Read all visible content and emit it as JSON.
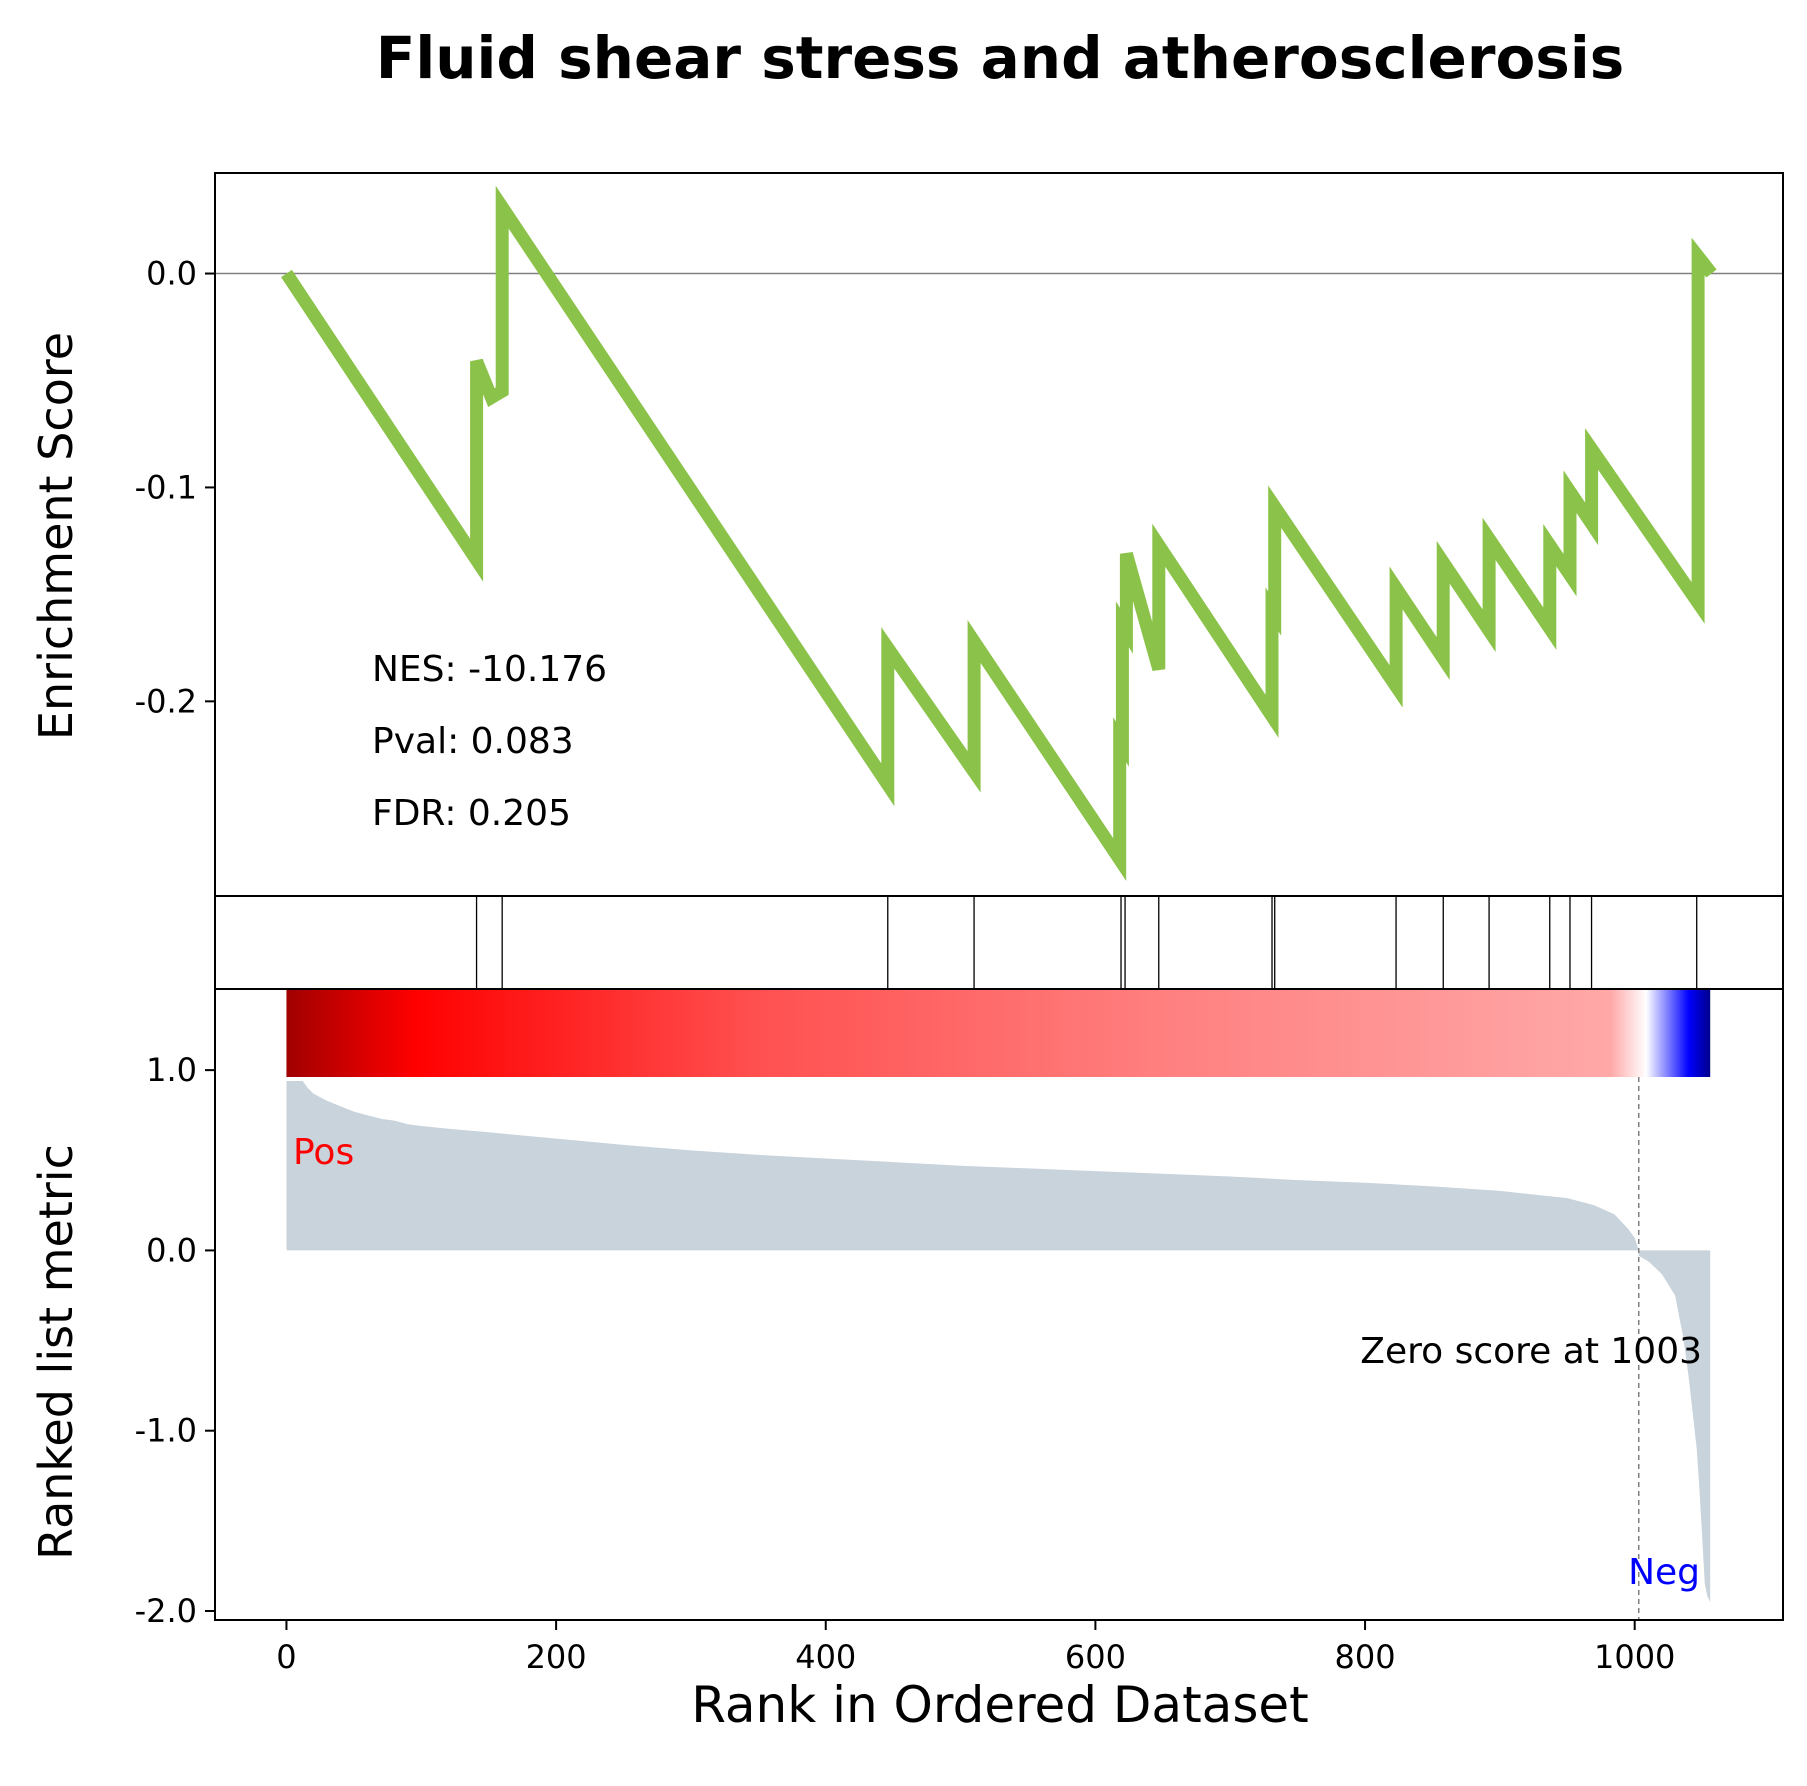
{
  "chart_data": {
    "type": "line",
    "title": "Fluid shear stress and atherosclerosis",
    "xlabel": "Rank in Ordered Dataset",
    "xlim": [
      -53,
      1110
    ],
    "x_ticks": [
      0,
      200,
      400,
      600,
      800,
      1000
    ],
    "top_panel": {
      "ylabel": "Enrichment Score",
      "ylim": [
        -0.291,
        0.047
      ],
      "y_ticks": [
        0.0,
        -0.1,
        -0.2
      ],
      "y_tick_labels": [
        "0.0",
        "-0.1",
        "-0.2"
      ],
      "zero_line": true,
      "line_color": "#8BC34A",
      "running_es": {
        "x": [
          0,
          141,
          141,
          152,
          160,
          160,
          446,
          446,
          510,
          510,
          618,
          618,
          620,
          620,
          623,
          623,
          647,
          647,
          731,
          731,
          733,
          733,
          823,
          823,
          858,
          858,
          892,
          892,
          937,
          937,
          952,
          952,
          968,
          968,
          1047,
          1047,
          1057
        ],
        "y": [
          0.0,
          -0.134,
          -0.041,
          -0.058,
          -0.055,
          0.031,
          -0.239,
          -0.175,
          -0.233,
          -0.172,
          -0.274,
          -0.218,
          -0.22,
          -0.164,
          -0.167,
          -0.131,
          -0.185,
          -0.127,
          -0.207,
          -0.157,
          -0.159,
          -0.109,
          -0.193,
          -0.147,
          -0.18,
          -0.135,
          -0.167,
          -0.124,
          -0.166,
          -0.127,
          -0.141,
          -0.102,
          -0.117,
          -0.082,
          -0.154,
          0.008,
          0.0
        ]
      },
      "annotations": [
        "NES: -10.176",
        "Pval: 0.083",
        "FDR: 0.205"
      ]
    },
    "hit_positions": [
      141,
      160,
      446,
      510,
      619,
      622,
      647,
      731,
      733,
      823,
      858,
      892,
      937,
      952,
      968,
      1046
    ],
    "colorbar": {
      "colors": [
        "#a00000",
        "#ff0000",
        "#ff5050",
        "#ff8080",
        "#ffa8a8",
        "#ffffff",
        "#0000ff",
        "#00008b"
      ],
      "stops": [
        0.0,
        0.09,
        0.33,
        0.62,
        0.93,
        0.955,
        0.985,
        1.0
      ]
    },
    "bottom_panel": {
      "ylabel": "Ranked list metric",
      "ylim": [
        -2.05,
        1.45
      ],
      "y_ticks": [
        1.0,
        0.0,
        -1.0,
        -2.0
      ],
      "y_tick_labels": [
        "1.0",
        "0.0",
        "-1.0",
        "-2.0"
      ],
      "fill_color": "#c8d3dc",
      "ranked_metric": {
        "x": [
          0,
          1,
          2,
          4,
          6,
          8,
          10,
          13,
          16,
          20,
          25,
          30,
          40,
          50,
          60,
          70,
          80,
          90,
          100,
          120,
          150,
          200,
          250,
          300,
          350,
          400,
          450,
          500,
          550,
          600,
          650,
          700,
          750,
          800,
          850,
          900,
          950,
          970,
          985,
          995,
          1000,
          1003,
          1003,
          1010,
          1020,
          1030,
          1036,
          1040,
          1043,
          1046,
          1048,
          1050,
          1052,
          1054,
          1056
        ],
        "y": [
          1.42,
          1.3,
          1.18,
          1.06,
          0.99,
          0.97,
          0.96,
          0.93,
          0.9,
          0.87,
          0.85,
          0.83,
          0.8,
          0.77,
          0.75,
          0.73,
          0.72,
          0.7,
          0.69,
          0.675,
          0.655,
          0.62,
          0.585,
          0.555,
          0.53,
          0.51,
          0.49,
          0.47,
          0.455,
          0.44,
          0.425,
          0.41,
          0.39,
          0.375,
          0.355,
          0.33,
          0.29,
          0.25,
          0.2,
          0.12,
          0.07,
          0.0,
          -0.03,
          -0.06,
          -0.13,
          -0.25,
          -0.48,
          -0.7,
          -0.9,
          -1.1,
          -1.32,
          -1.58,
          -1.85,
          -1.92,
          -1.95
        ]
      },
      "zero_crossing": 1003,
      "zero_label": "Zero score at 1003",
      "pos_label": "Pos",
      "neg_label": "Neg",
      "pos_color": "#ff0000",
      "neg_color": "#0000ff"
    }
  }
}
